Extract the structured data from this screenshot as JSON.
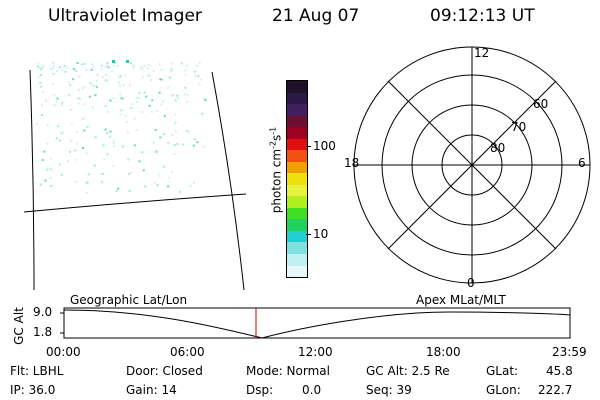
{
  "header": {
    "instrument": "Ultraviolet Imager",
    "date": "21 Aug 07",
    "time": "09:12:13 UT"
  },
  "colorbar": {
    "label": "photon cm",
    "label_sup1": "-2",
    "label_mid": "s",
    "label_sup2": "-1",
    "ticks": [
      "100",
      "10"
    ],
    "colors": [
      "#20102a",
      "#2a1848",
      "#402060",
      "#6a1030",
      "#a00020",
      "#e01010",
      "#f05010",
      "#f0a000",
      "#f0e010",
      "#e8f040",
      "#b0f020",
      "#40e020",
      "#20d060",
      "#20d0d0",
      "#80e0e0",
      "#c0f0f0",
      "#e8f8f8"
    ]
  },
  "polar_plot": {
    "hour_labels": [
      "12",
      "18",
      "6",
      "0"
    ],
    "lat_labels": [
      "60",
      "70",
      "80"
    ]
  },
  "altitude_plot": {
    "ylabel": "GC Alt",
    "yticks": [
      "9.0",
      "1.8"
    ],
    "left_label": "Geographic Lat/Lon",
    "right_label": "Apex MLat/MLT",
    "xticks": [
      "00:00",
      "06:00",
      "12:00",
      "18:00",
      "23:59"
    ],
    "marker_color": "#cc0000"
  },
  "footer": {
    "filter": "Flt: LBHL",
    "ip": "IP: 36.0",
    "door": "Door: Closed",
    "gain": "Gain: 14",
    "mode": "Mode: Normal",
    "dsp_label": "Dsp:",
    "dsp_value": "0.0",
    "gc_alt": "GC Alt: 2.5 Re",
    "seq": "Seq: 39",
    "glat_label": "GLat:",
    "glat_value": "45.8",
    "glon_label": "GLon:",
    "glon_value": "222.7"
  }
}
